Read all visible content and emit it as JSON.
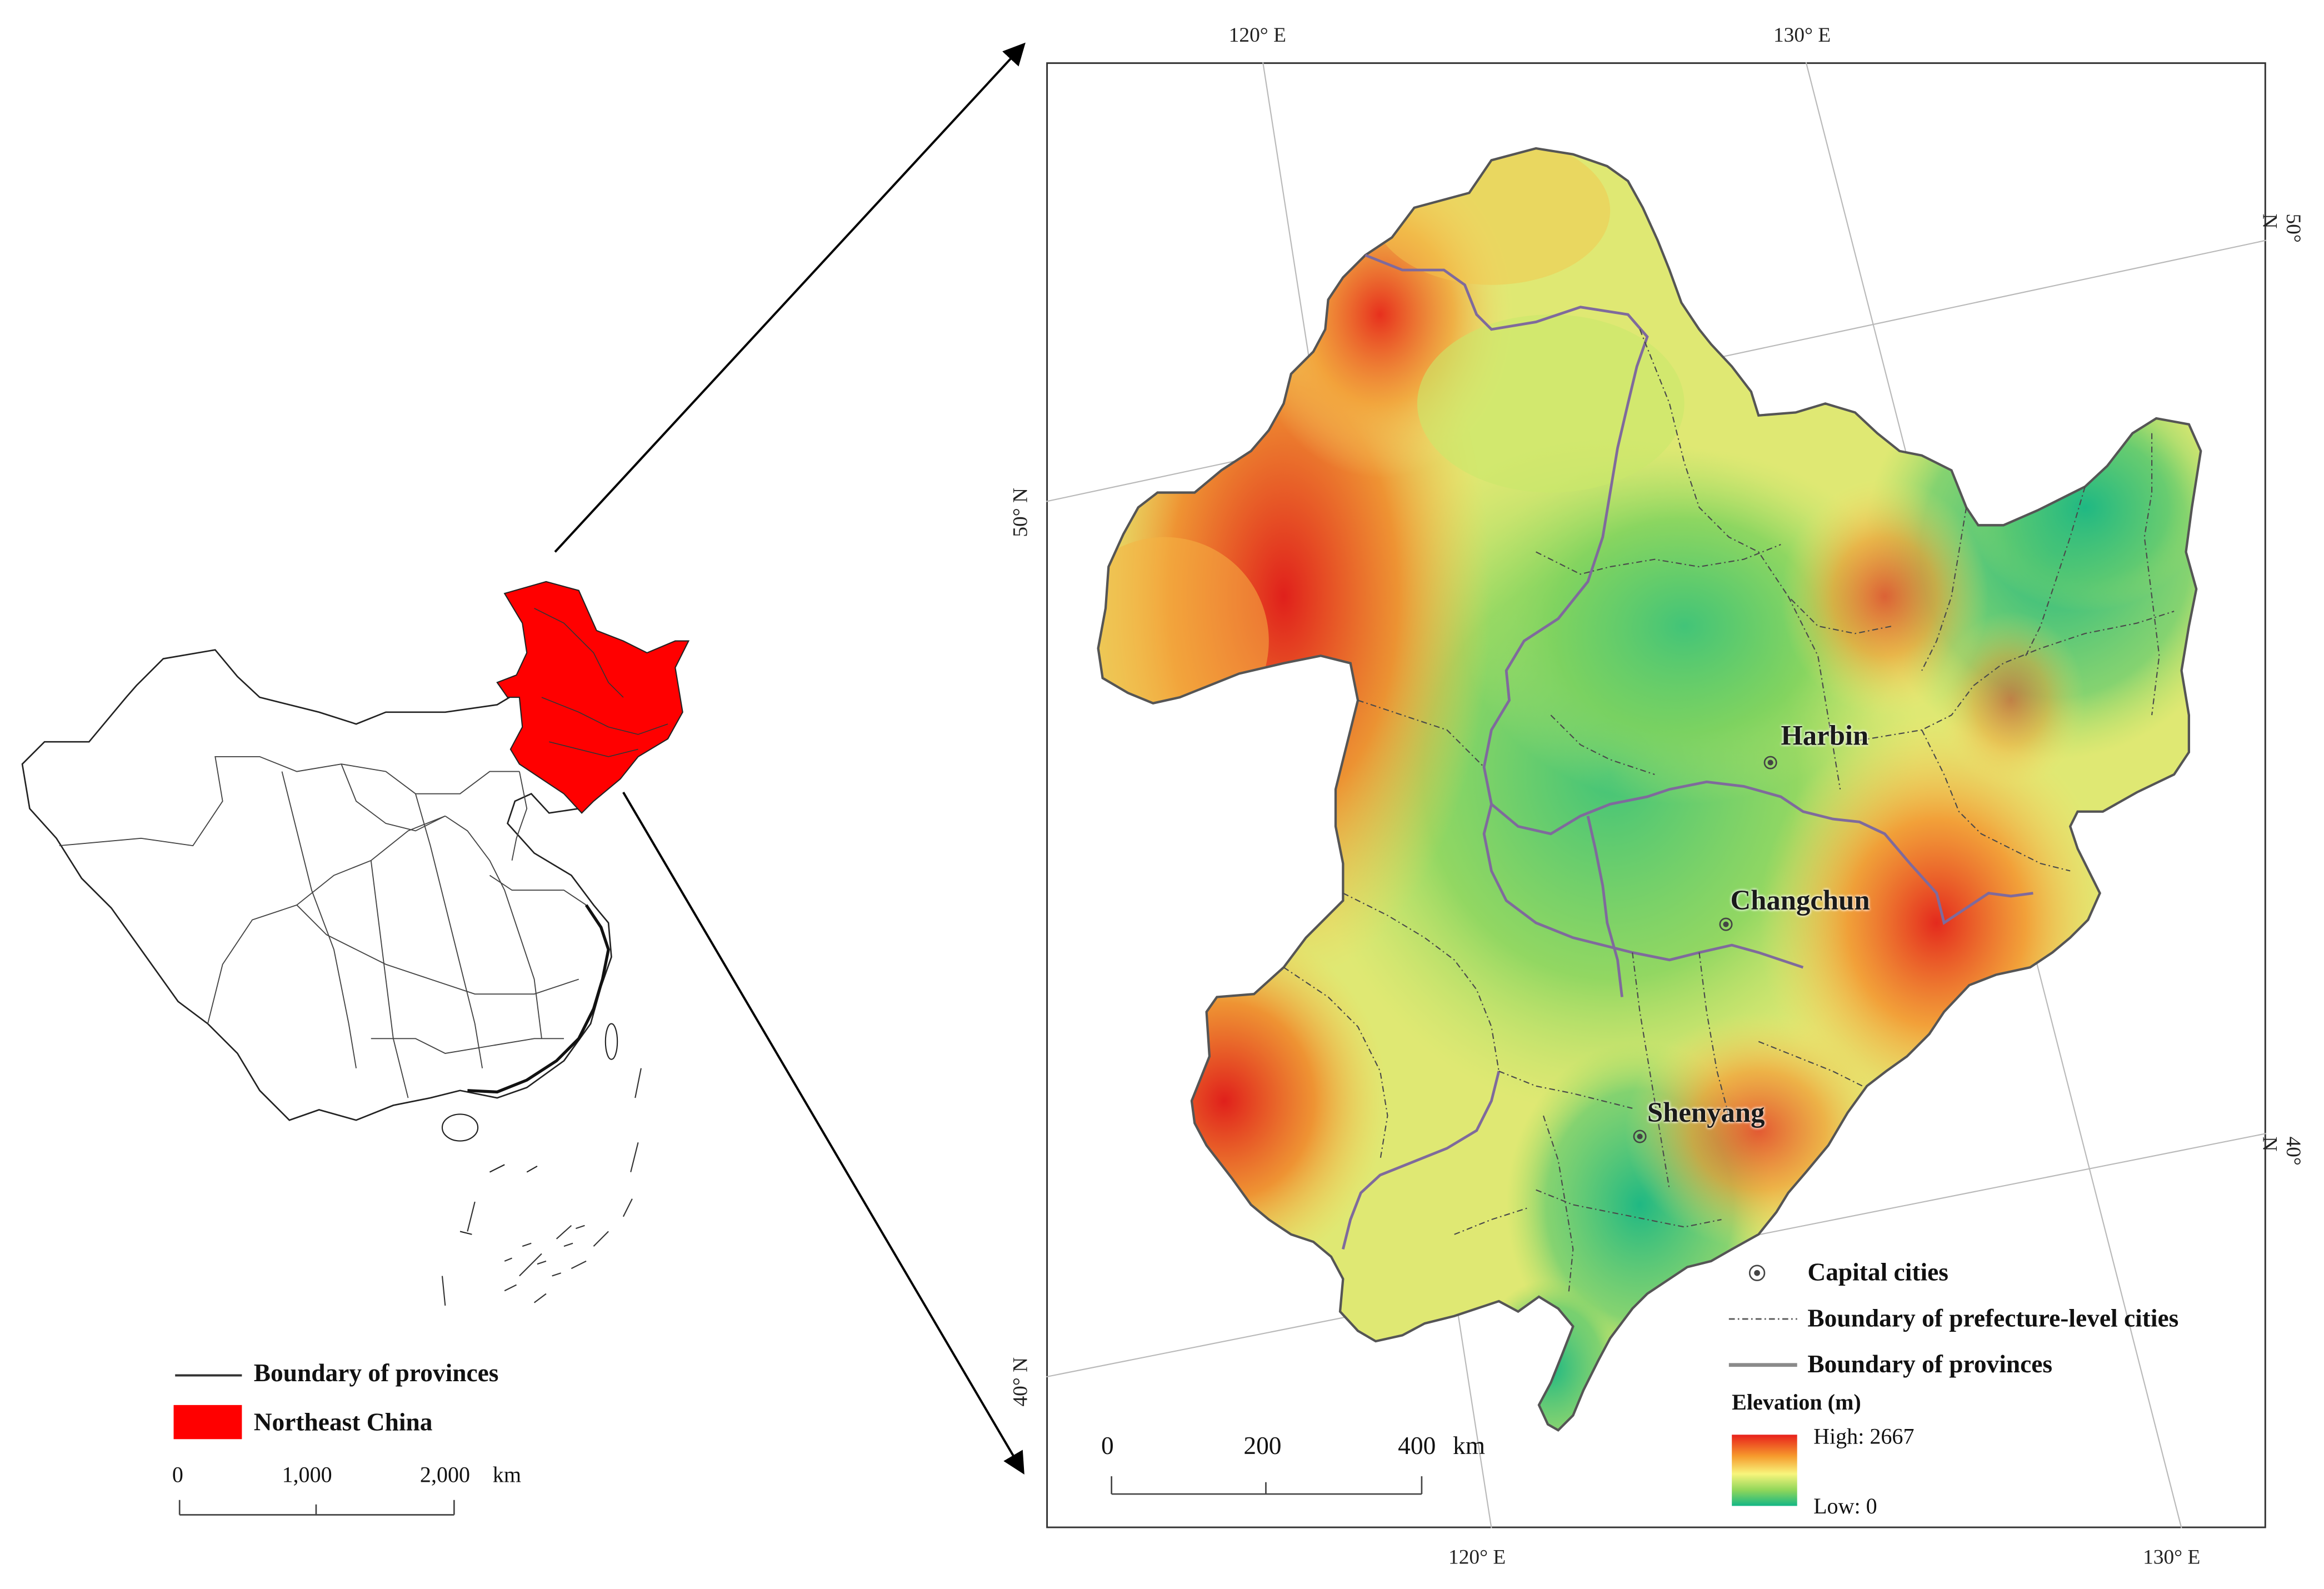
{
  "overview": {
    "legend": {
      "boundary_label": "Boundary of provinces",
      "region_label": "Northeast China",
      "region_color": "#ff0000"
    },
    "scalebar": {
      "ticks": [
        "0",
        "1,000",
        "2,000"
      ],
      "unit": "km"
    }
  },
  "detail": {
    "graticule": {
      "top_labels": [
        "120° E",
        "130° E"
      ],
      "bottom_labels": [
        "120° E",
        "130° E"
      ],
      "left_labels": [
        "50° N",
        "40° N"
      ],
      "right_labels": [
        "50° N",
        "40° N"
      ]
    },
    "cities": [
      {
        "name": "Harbin"
      },
      {
        "name": "Changchun"
      },
      {
        "name": "Shenyang"
      }
    ],
    "legend": {
      "capital_label": "Capital cities",
      "prefecture_label": "Boundary of prefecture-level cities",
      "province_label": "Boundary of provinces",
      "elevation_title": "Elevation (m)",
      "high_label": "High: 2667",
      "low_label": "Low: 0",
      "high_color": "#e8201b",
      "low_color": "#13b785"
    },
    "scalebar": {
      "ticks": [
        "0",
        "200",
        "400"
      ],
      "unit": "km"
    }
  }
}
